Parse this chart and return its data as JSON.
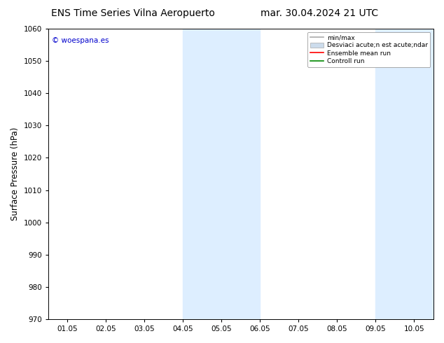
{
  "title_left": "ENS Time Series Vilna Aeropuerto",
  "title_right": "mar. 30.04.2024 21 UTC",
  "ylabel": "Surface Pressure (hPa)",
  "ylim": [
    970,
    1060
  ],
  "yticks": [
    970,
    980,
    990,
    1000,
    1010,
    1020,
    1030,
    1040,
    1050,
    1060
  ],
  "xtick_labels": [
    "01.05",
    "02.05",
    "03.05",
    "04.05",
    "05.05",
    "06.05",
    "07.05",
    "08.05",
    "09.05",
    "10.05"
  ],
  "xtick_positions": [
    0,
    1,
    2,
    3,
    4,
    5,
    6,
    7,
    8,
    9
  ],
  "xlim": [
    -0.5,
    9.5
  ],
  "shaded_bands": [
    {
      "x_start": 3.0,
      "x_end": 5.0
    },
    {
      "x_start": 8.0,
      "x_end": 9.5
    }
  ],
  "shaded_color": "#ddeeff",
  "watermark_text": "© woespana.es",
  "watermark_color": "#0000cc",
  "legend_label_1": "min/max",
  "legend_color_1": "#aaaaaa",
  "legend_label_2": "Desviaci acute;n est acute;ndar",
  "legend_color_2": "#ccdcec",
  "legend_label_3": "Ensemble mean run",
  "legend_color_3": "#ff0000",
  "legend_label_4": "Controll run",
  "legend_color_4": "#008800",
  "bg_color": "#ffffff",
  "plot_bg_color": "#ffffff",
  "title_fontsize": 10,
  "tick_fontsize": 7.5,
  "ylabel_fontsize": 8.5
}
